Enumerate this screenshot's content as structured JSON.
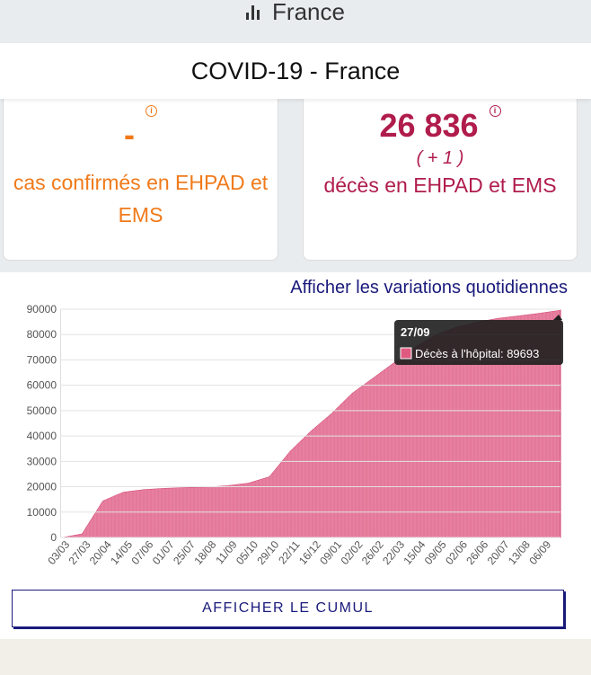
{
  "topbar": {
    "icon": "bar-chart-icon",
    "title": "France"
  },
  "header": {
    "title": "COVID-19 - France"
  },
  "cards": {
    "confirmed": {
      "value": "-",
      "label": "cas confirmés en EHPAD et EMS",
      "color": "#f07a1a"
    },
    "deaths": {
      "value": "26 836",
      "delta": "( + 1 )",
      "label": "décès en EHPAD et EMS",
      "color": "#b01c4c"
    }
  },
  "daily_variations_link": "Afficher les variations quotidiennes",
  "cumul_button": "AFFICHER LE CUMUL",
  "tooltip": {
    "date": "27/09",
    "text": "Décès à l'hôpital: 89693",
    "color": "#e05a80"
  },
  "chart_data": {
    "type": "area",
    "series": [
      {
        "name": "Décès à l'hôpital",
        "color": "#e06088"
      }
    ],
    "ylim": [
      0,
      90000
    ],
    "yticks": [
      0,
      10000,
      20000,
      30000,
      40000,
      50000,
      60000,
      70000,
      80000,
      90000
    ],
    "x": [
      "03/03",
      "27/03",
      "20/04",
      "14/05",
      "07/06",
      "01/07",
      "25/07",
      "18/08",
      "11/09",
      "05/10",
      "29/10",
      "22/11",
      "16/12",
      "09/01",
      "02/02",
      "26/02",
      "22/03",
      "15/04",
      "09/05",
      "02/06",
      "26/06",
      "20/07",
      "13/08",
      "06/09",
      "27/09"
    ],
    "values": [
      0,
      1500,
      14500,
      18000,
      19000,
      19500,
      19800,
      20000,
      20500,
      21500,
      24000,
      34000,
      42000,
      49000,
      57000,
      63000,
      69000,
      75000,
      80000,
      83000,
      85000,
      86500,
      87500,
      88500,
      89693
    ],
    "xtick_labels": [
      "03/03",
      "27/03",
      "20/04",
      "14/05",
      "07/06",
      "01/07",
      "25/07",
      "18/08",
      "11/09",
      "05/10",
      "29/10",
      "22/11",
      "16/12",
      "09/01",
      "02/02",
      "26/02",
      "22/03",
      "15/04",
      "09/05",
      "02/06",
      "26/06",
      "20/07",
      "13/08",
      "06/09"
    ]
  }
}
